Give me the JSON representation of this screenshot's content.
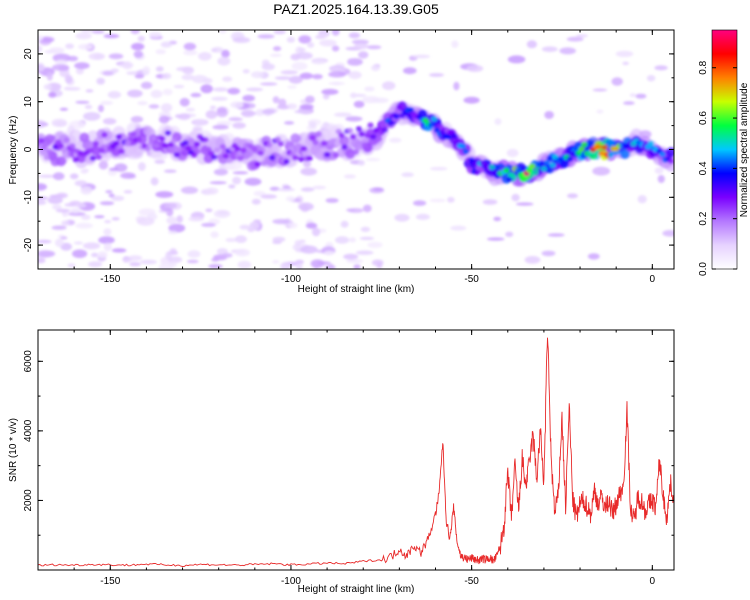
{
  "figure": {
    "title": "PAZ1.2025.164.13.39.G05"
  },
  "chart_data": [
    {
      "type": "heatmap",
      "xlabel": "Height of straight line (km)",
      "ylabel": "Frequency (Hz)",
      "xlim": [
        -170,
        6
      ],
      "ylim": [
        -25,
        25
      ],
      "xticks": [
        -150,
        -100,
        -50,
        0
      ],
      "yticks": [
        -20,
        -10,
        0,
        10,
        20
      ],
      "colorbar": {
        "label": "Normalized spectral amplitude",
        "range": [
          0,
          0.95
        ],
        "ticks": [
          0.0,
          0.2,
          0.4,
          0.6,
          0.8
        ],
        "colormap": [
          "#ffffff",
          "#e6d2ff",
          "#b478ff",
          "#7a00ff",
          "#0000ff",
          "#00c8ff",
          "#00ff40",
          "#c8ff00",
          "#ff8000",
          "#ff0000",
          "#ff007f"
        ]
      },
      "ridge": {
        "x": [
          -170,
          -160,
          -150,
          -140,
          -130,
          -120,
          -110,
          -100,
          -90,
          -80,
          -75,
          -72,
          -70,
          -68,
          -65,
          -62,
          -60,
          -57,
          -55,
          -52,
          -50,
          -48,
          -46,
          -44,
          -42,
          -40,
          -38,
          -35,
          -32,
          -30,
          -28,
          -25,
          -22,
          -20,
          -18,
          -15,
          -12,
          -10,
          -8,
          -5,
          -3,
          0,
          3,
          6
        ],
        "y": [
          0,
          0,
          1,
          2,
          1,
          0,
          -1,
          0,
          1,
          2,
          4,
          7,
          8,
          8,
          7,
          6,
          5,
          3,
          2,
          0,
          -3,
          -4,
          -4,
          -5,
          -5,
          -5,
          -5,
          -5,
          -4,
          -3,
          -3,
          -2,
          -1,
          0,
          0,
          0,
          0,
          0,
          0,
          2,
          1,
          0,
          -1,
          -2
        ],
        "amplitude": [
          0.3,
          0.3,
          0.3,
          0.3,
          0.3,
          0.3,
          0.3,
          0.3,
          0.3,
          0.3,
          0.35,
          0.45,
          0.45,
          0.4,
          0.45,
          0.6,
          0.5,
          0.4,
          0.45,
          0.45,
          0.45,
          0.5,
          0.5,
          0.55,
          0.6,
          0.65,
          0.7,
          0.95,
          0.6,
          0.5,
          0.55,
          0.6,
          0.6,
          0.65,
          0.75,
          0.95,
          0.8,
          0.7,
          0.6,
          0.5,
          0.55,
          0.5,
          0.5,
          0.4
        ]
      }
    },
    {
      "type": "line",
      "xlabel": "Height of straight line (km)",
      "ylabel": "SNR (10 * v/v)",
      "xlim": [
        -170,
        6
      ],
      "ylim": [
        0,
        6900
      ],
      "xticks": [
        -150,
        -100,
        -50,
        0
      ],
      "yticks": [
        2000,
        4000,
        6000
      ],
      "color": "#e82a2a",
      "series": [
        {
          "x": [
            -170,
            -165,
            -160,
            -155,
            -150,
            -145,
            -140,
            -135,
            -130,
            -125,
            -120,
            -115,
            -110,
            -105,
            -100,
            -95,
            -90,
            -85,
            -80,
            -75,
            -72,
            -70,
            -68,
            -66,
            -64,
            -62,
            -60,
            -59,
            -58,
            -57,
            -56,
            -55,
            -54,
            -53,
            -52,
            -51,
            -50,
            -49,
            -48,
            -47,
            -46,
            -45,
            -44,
            -43,
            -42,
            -41,
            -40,
            -39,
            -38,
            -37,
            -36,
            -35,
            -34,
            -33,
            -32,
            -31,
            -30,
            -29,
            -28,
            -27,
            -26,
            -25,
            -24,
            -23,
            -22,
            -21,
            -20,
            -19,
            -18,
            -17,
            -16,
            -15,
            -14,
            -13,
            -12,
            -11,
            -10,
            -9,
            -8,
            -7,
            -6,
            -5,
            -4,
            -3,
            -2,
            -1,
            0,
            1,
            2,
            3,
            4,
            5,
            6
          ],
          "y": [
            130,
            150,
            140,
            160,
            150,
            140,
            170,
            150,
            130,
            160,
            150,
            140,
            160,
            180,
            150,
            170,
            200,
            180,
            250,
            300,
            400,
            600,
            400,
            700,
            500,
            900,
            1600,
            2200,
            3700,
            1400,
            900,
            1800,
            800,
            400,
            350,
            300,
            350,
            300,
            280,
            320,
            300,
            350,
            260,
            400,
            700,
            1300,
            2800,
            1500,
            3000,
            1700,
            3200,
            2400,
            3100,
            3900,
            2600,
            4000,
            2500,
            6900,
            3200,
            1600,
            2200,
            4400,
            1800,
            4700,
            2000,
            1500,
            1900,
            2000,
            1800,
            1600,
            2300,
            1900,
            2100,
            1800,
            2000,
            1600,
            1900,
            2200,
            2400,
            4600,
            1700,
            1400,
            2100,
            2000,
            1700,
            1900,
            2000,
            1800,
            3200,
            2100,
            1500,
            2500,
            2000
          ]
        }
      ]
    }
  ]
}
